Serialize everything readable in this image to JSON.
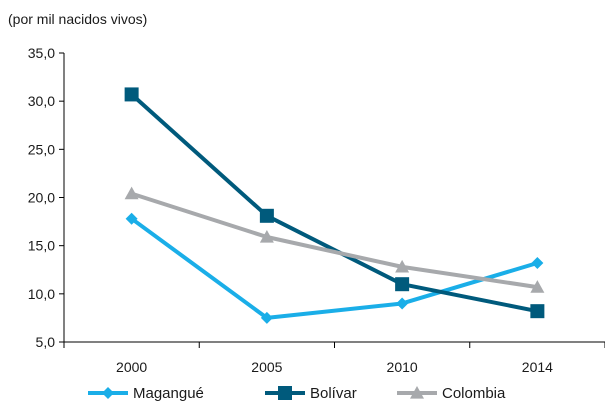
{
  "chart_data": {
    "type": "line",
    "ylabel": "(por mil nacidos vivos)",
    "x": [
      "2000",
      "2005",
      "2010",
      "2014"
    ],
    "ylim": [
      5,
      35
    ],
    "y_ticks": [
      "5,0",
      "10,0",
      "15,0",
      "20,0",
      "25,0",
      "30,0",
      "35,0"
    ],
    "grid": false,
    "legend_position": "bottom",
    "series": [
      {
        "name": "Magangué",
        "values": [
          17.8,
          7.5,
          9.0,
          13.2
        ],
        "color": "#1aaee8",
        "marker": "diamond"
      },
      {
        "name": "Bolívar",
        "values": [
          30.7,
          18.1,
          11.0,
          8.2
        ],
        "color": "#005a7c",
        "marker": "square"
      },
      {
        "name": "Colombia",
        "values": [
          20.4,
          15.9,
          12.8,
          10.7
        ],
        "color": "#a7a9ac",
        "marker": "triangle"
      }
    ]
  }
}
